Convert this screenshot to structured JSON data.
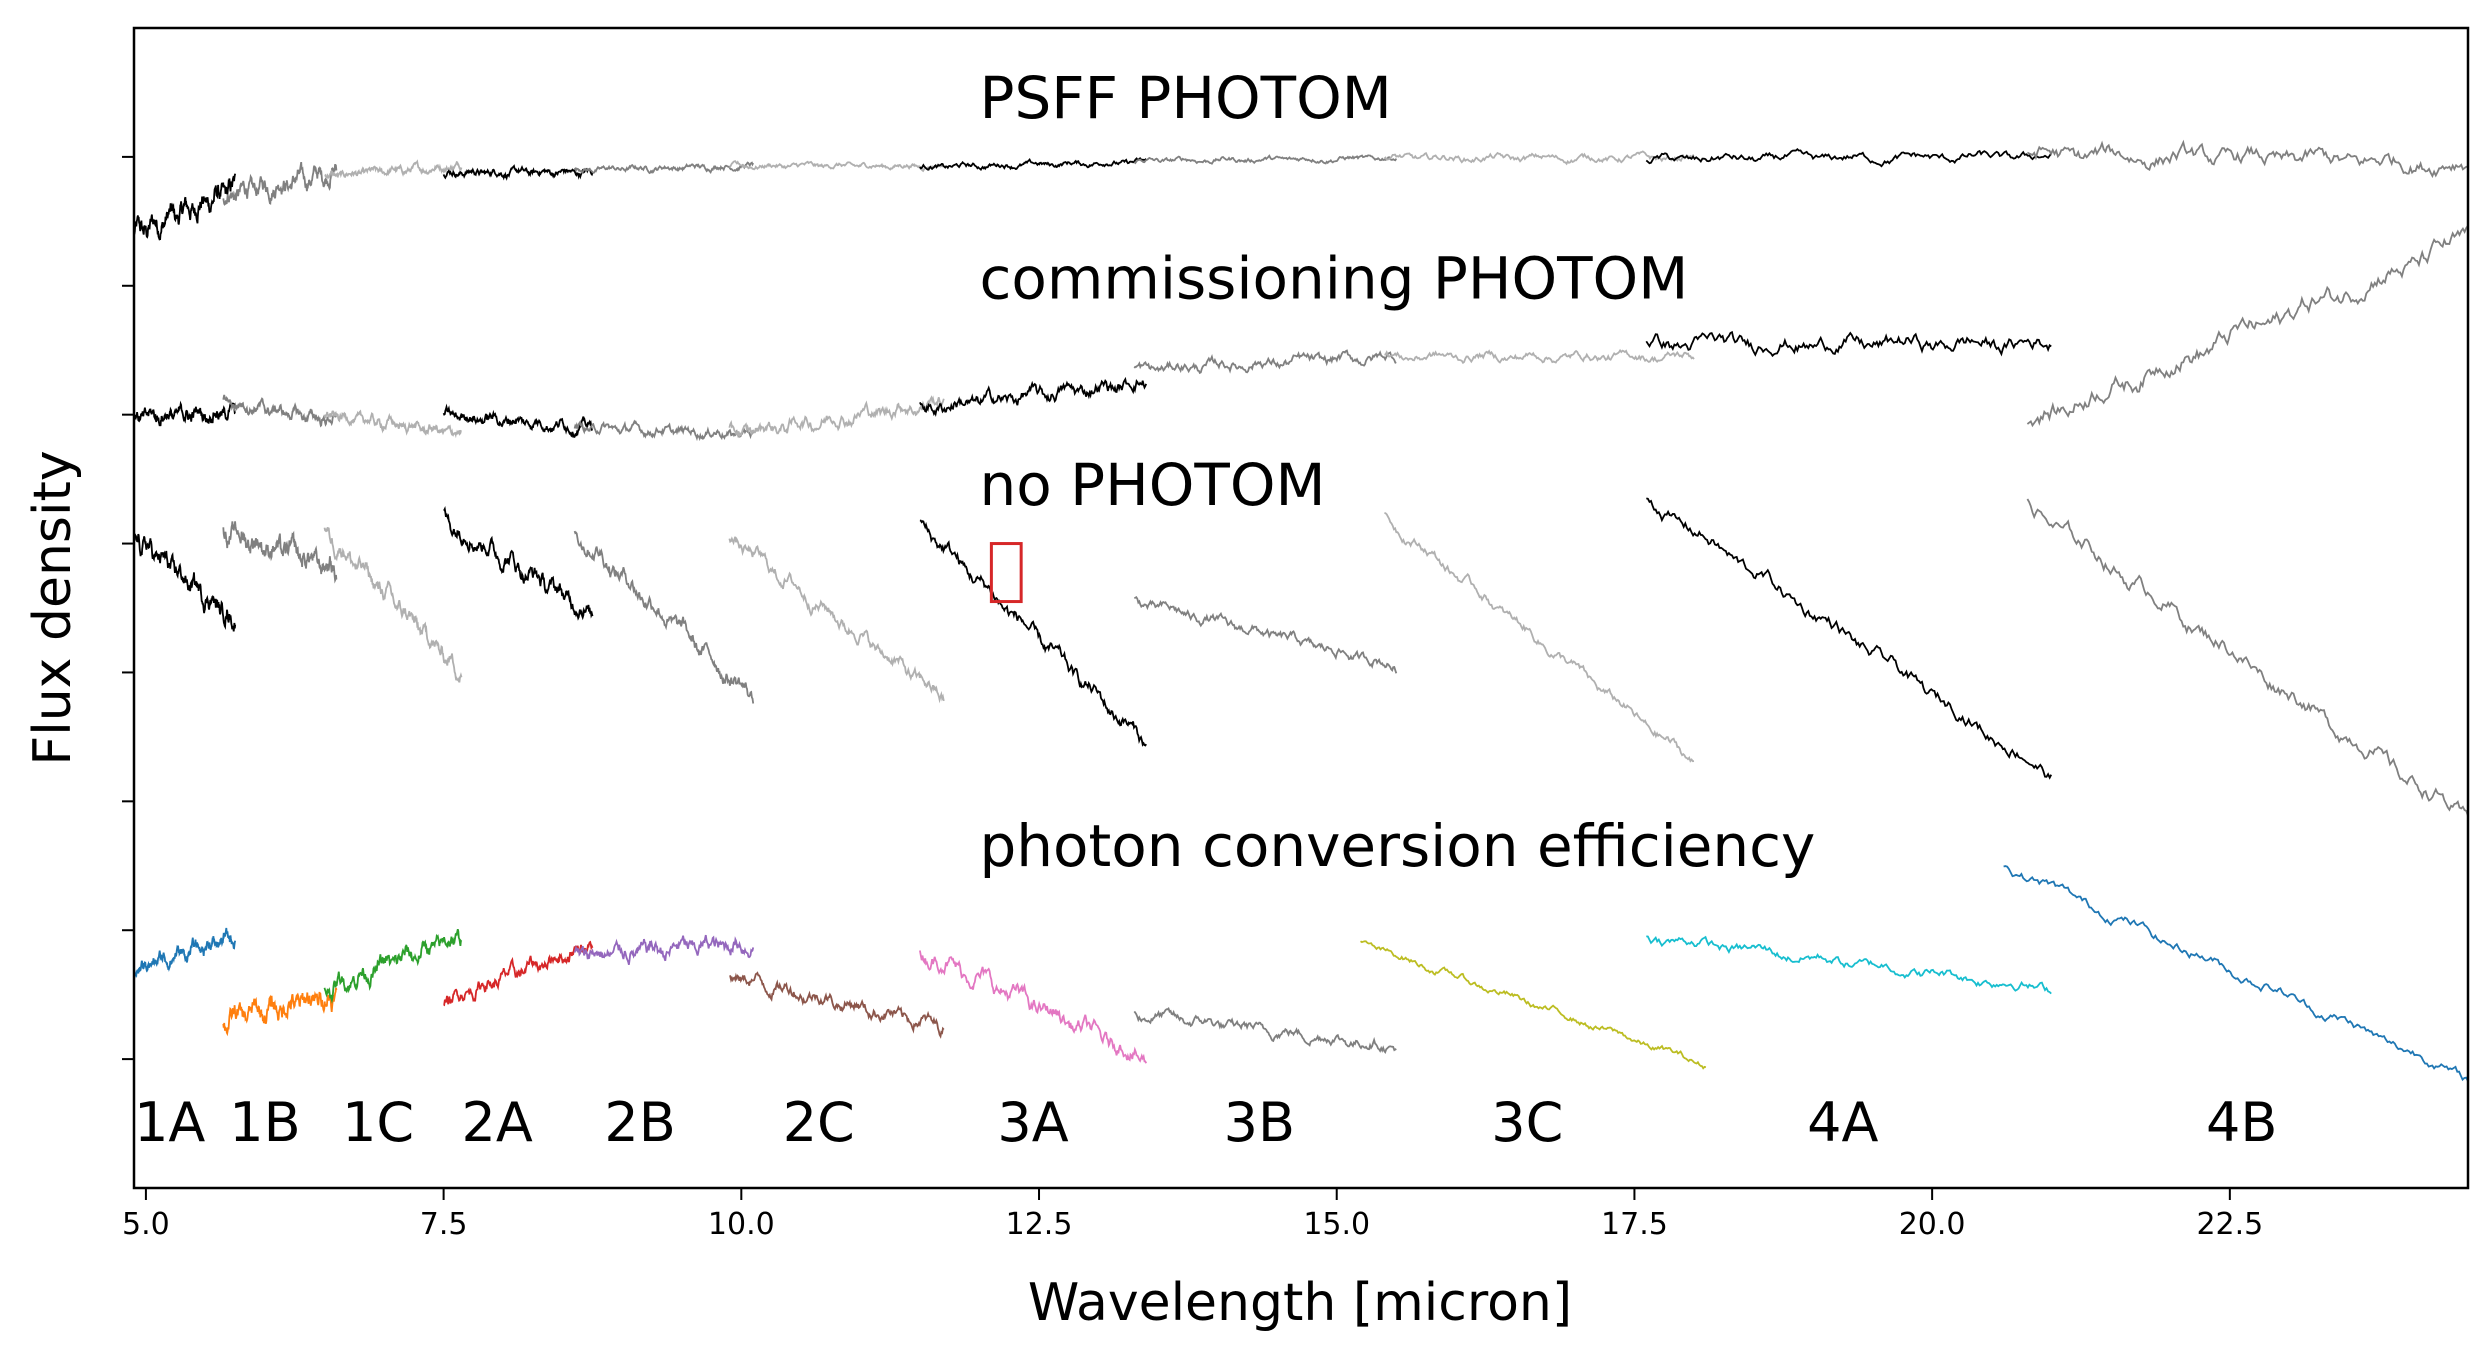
{
  "chart_data": {
    "type": "line",
    "title": "",
    "xlabel": "Wavelength [micron]",
    "ylabel": "Flux density",
    "xlim": [
      4.9,
      24.5
    ],
    "ylim": [
      0,
      9
    ],
    "yticks_labeled": false,
    "xticks": [
      5.0,
      7.5,
      10.0,
      12.5,
      15.0,
      17.5,
      20.0,
      22.5
    ],
    "xtick_labels": [
      "5.0",
      "7.5",
      "10.0",
      "12.5",
      "15.0",
      "17.5",
      "20.0",
      "22.5"
    ],
    "yticks": [
      1,
      2,
      3,
      4,
      5,
      6,
      7,
      8
    ],
    "grid": false,
    "annotations": [
      {
        "text": "PSFF PHOTOM",
        "x": 12.0,
        "y": 8.3
      },
      {
        "text": "commissioning PHOTOM",
        "x": 12.0,
        "y": 6.9
      },
      {
        "text": "no PHOTOM",
        "x": 12.0,
        "y": 5.3
      },
      {
        "text": "photon conversion efficiency",
        "x": 12.0,
        "y": 2.5
      }
    ],
    "channel_labels": [
      {
        "text": "1A",
        "x": 5.2
      },
      {
        "text": "1B",
        "x": 6.0
      },
      {
        "text": "1C",
        "x": 6.95
      },
      {
        "text": "2A",
        "x": 7.95
      },
      {
        "text": "2B",
        "x": 9.15
      },
      {
        "text": "2C",
        "x": 10.65
      },
      {
        "text": "3A",
        "x": 12.45
      },
      {
        "text": "3B",
        "x": 14.35
      },
      {
        "text": "3C",
        "x": 16.6
      },
      {
        "text": "4A",
        "x": 19.25
      },
      {
        "text": "4B",
        "x": 22.6
      }
    ],
    "highlight_box": {
      "x0": 12.1,
      "x1": 12.35,
      "y0": 4.55,
      "y1": 5.0,
      "color": "#d62728"
    },
    "series": [
      {
        "name": "PSFF PHOTOM",
        "segments": [
          {
            "channel": "1A",
            "color": "#000000",
            "x": [
              4.9,
              5.75
            ],
            "y": [
              7.4,
              7.75
            ],
            "noise": 0.06
          },
          {
            "channel": "1B",
            "color": "#808080",
            "x": [
              5.65,
              6.6
            ],
            "y": [
              7.7,
              7.88
            ],
            "noise": 0.05
          },
          {
            "channel": "1C",
            "color": "#b0b0b0",
            "x": [
              6.5,
              7.65
            ],
            "y": [
              7.85,
              7.93
            ],
            "noise": 0.02
          },
          {
            "channel": "2A",
            "color": "#000000",
            "x": [
              7.5,
              8.75
            ],
            "y": [
              7.88,
              7.88
            ],
            "noise": 0.02
          },
          {
            "channel": "2B",
            "color": "#808080",
            "x": [
              8.6,
              10.1
            ],
            "y": [
              7.9,
              7.93
            ],
            "noise": 0.015
          },
          {
            "channel": "2C",
            "color": "#b0b0b0",
            "x": [
              9.9,
              11.7
            ],
            "y": [
              7.93,
              7.93
            ],
            "noise": 0.015
          },
          {
            "channel": "3A",
            "color": "#000000",
            "x": [
              11.5,
              13.4
            ],
            "y": [
              7.92,
              7.96
            ],
            "noise": 0.015
          },
          {
            "channel": "3B",
            "color": "#808080",
            "x": [
              13.3,
              15.5
            ],
            "y": [
              7.97,
              7.99
            ],
            "noise": 0.015
          },
          {
            "channel": "3C",
            "color": "#b0b0b0",
            "x": [
              15.4,
              18.0
            ],
            "y": [
              7.99,
              7.99
            ],
            "noise": 0.02
          },
          {
            "channel": "4A",
            "color": "#000000",
            "x": [
              17.6,
              21.0
            ],
            "y": [
              7.98,
              8.0
            ],
            "noise": 0.025
          },
          {
            "channel": "4B",
            "color": "#808080",
            "x": [
              20.8,
              24.5
            ],
            "y": [
              8.02,
              7.95
            ],
            "noise": 0.05
          }
        ]
      },
      {
        "name": "commissioning PHOTOM",
        "segments": [
          {
            "channel": "1A",
            "color": "#000000",
            "x": [
              4.9,
              5.75
            ],
            "y": [
              5.98,
              6.02
            ],
            "noise": 0.04
          },
          {
            "channel": "1B",
            "color": "#808080",
            "x": [
              5.65,
              6.6
            ],
            "y": [
              6.1,
              5.95
            ],
            "noise": 0.03
          },
          {
            "channel": "1C",
            "color": "#b0b0b0",
            "x": [
              6.5,
              7.65
            ],
            "y": [
              6.0,
              5.85
            ],
            "noise": 0.03
          },
          {
            "channel": "2A",
            "color": "#000000",
            "x": [
              7.5,
              8.75
            ],
            "y": [
              6.0,
              5.9
            ],
            "noise": 0.03
          },
          {
            "channel": "2B",
            "color": "#808080",
            "x": [
              8.6,
              10.1
            ],
            "y": [
              5.9,
              5.85
            ],
            "noise": 0.025
          },
          {
            "channel": "2C",
            "color": "#b0b0b0",
            "x": [
              9.9,
              11.7
            ],
            "y": [
              5.85,
              6.1
            ],
            "noise": 0.04
          },
          {
            "channel": "3A",
            "color": "#000000",
            "x": [
              11.5,
              13.4
            ],
            "y": [
              6.05,
              6.25
            ],
            "noise": 0.04
          },
          {
            "channel": "3B",
            "color": "#808080",
            "x": [
              13.3,
              15.5
            ],
            "y": [
              6.35,
              6.45
            ],
            "noise": 0.03
          },
          {
            "channel": "3C",
            "color": "#b0b0b0",
            "x": [
              15.4,
              18.0
            ],
            "y": [
              6.45,
              6.45
            ],
            "noise": 0.025
          },
          {
            "channel": "4A",
            "color": "#000000",
            "x": [
              17.6,
              21.0
            ],
            "y": [
              6.55,
              6.55
            ],
            "noise": 0.045
          },
          {
            "channel": "4B",
            "color": "#808080",
            "x": [
              20.8,
              24.5
            ],
            "y": [
              5.95,
              7.35
            ],
            "noise": 0.06
          }
        ]
      },
      {
        "name": "no PHOTOM",
        "segments": [
          {
            "channel": "1A",
            "color": "#000000",
            "x": [
              4.9,
              5.75
            ],
            "y": [
              5.05,
              4.4
            ],
            "noise": 0.05
          },
          {
            "channel": "1B",
            "color": "#808080",
            "x": [
              5.65,
              6.6
            ],
            "y": [
              5.1,
              4.8
            ],
            "noise": 0.06
          },
          {
            "channel": "1C",
            "color": "#b0b0b0",
            "x": [
              6.5,
              7.65
            ],
            "y": [
              5.1,
              4.0
            ],
            "noise": 0.05
          },
          {
            "channel": "2A",
            "color": "#000000",
            "x": [
              7.5,
              8.75
            ],
            "y": [
              5.2,
              4.45
            ],
            "noise": 0.05
          },
          {
            "channel": "2B",
            "color": "#808080",
            "x": [
              8.6,
              10.1
            ],
            "y": [
              5.1,
              3.8
            ],
            "noise": 0.05
          },
          {
            "channel": "2C",
            "color": "#b0b0b0",
            "x": [
              9.9,
              11.7
            ],
            "y": [
              5.05,
              3.8
            ],
            "noise": 0.04
          },
          {
            "channel": "3A",
            "color": "#000000",
            "x": [
              11.5,
              13.4
            ],
            "y": [
              5.15,
              3.45
            ],
            "noise": 0.04
          },
          {
            "channel": "3B",
            "color": "#808080",
            "x": [
              13.3,
              15.5
            ],
            "y": [
              4.55,
              4.05
            ],
            "noise": 0.03
          },
          {
            "channel": "3C",
            "color": "#b0b0b0",
            "x": [
              15.4,
              18.0
            ],
            "y": [
              5.2,
              3.3
            ],
            "noise": 0.03
          },
          {
            "channel": "4A",
            "color": "#000000",
            "x": [
              17.6,
              21.0
            ],
            "y": [
              5.35,
              3.2
            ],
            "noise": 0.04
          },
          {
            "channel": "4B",
            "color": "#808080",
            "x": [
              20.8,
              24.5
            ],
            "y": [
              5.3,
              2.85
            ],
            "noise": 0.05
          }
        ]
      },
      {
        "name": "photon conversion efficiency",
        "segments": [
          {
            "channel": "1A",
            "color": "#1f77b4",
            "x": [
              4.9,
              5.75
            ],
            "y": [
              1.7,
              1.95
            ],
            "noise": 0.04
          },
          {
            "channel": "1B",
            "color": "#ff7f0e",
            "x": [
              5.65,
              6.6
            ],
            "y": [
              1.3,
              1.5
            ],
            "noise": 0.06
          },
          {
            "channel": "1C",
            "color": "#2ca02c",
            "x": [
              6.5,
              7.65
            ],
            "y": [
              1.55,
              1.95
            ],
            "noise": 0.05
          },
          {
            "channel": "2A",
            "color": "#d62728",
            "x": [
              7.5,
              8.75
            ],
            "y": [
              1.45,
              1.9
            ],
            "noise": 0.04
          },
          {
            "channel": "2B",
            "color": "#9467bd",
            "x": [
              8.6,
              10.1
            ],
            "y": [
              1.8,
              1.9
            ],
            "noise": 0.05
          },
          {
            "channel": "2C",
            "color": "#8c564b",
            "x": [
              9.9,
              11.7
            ],
            "y": [
              1.65,
              1.25
            ],
            "noise": 0.04
          },
          {
            "channel": "3A",
            "color": "#e377c2",
            "x": [
              11.5,
              13.4
            ],
            "y": [
              1.85,
              1.0
            ],
            "noise": 0.05
          },
          {
            "channel": "3B",
            "color": "#7f7f7f",
            "x": [
              13.3,
              15.5
            ],
            "y": [
              1.35,
              1.1
            ],
            "noise": 0.03
          },
          {
            "channel": "3C",
            "color": "#bcbd22",
            "x": [
              15.2,
              18.1
            ],
            "y": [
              1.9,
              0.95
            ],
            "noise": 0.02
          },
          {
            "channel": "4A",
            "color": "#17becf",
            "x": [
              17.6,
              21.0
            ],
            "y": [
              1.95,
              1.55
            ],
            "noise": 0.03
          },
          {
            "channel": "4B",
            "color": "#1f77b4",
            "x": [
              20.6,
              24.5
            ],
            "y": [
              2.5,
              0.85
            ],
            "noise": 0.03
          }
        ]
      }
    ]
  }
}
